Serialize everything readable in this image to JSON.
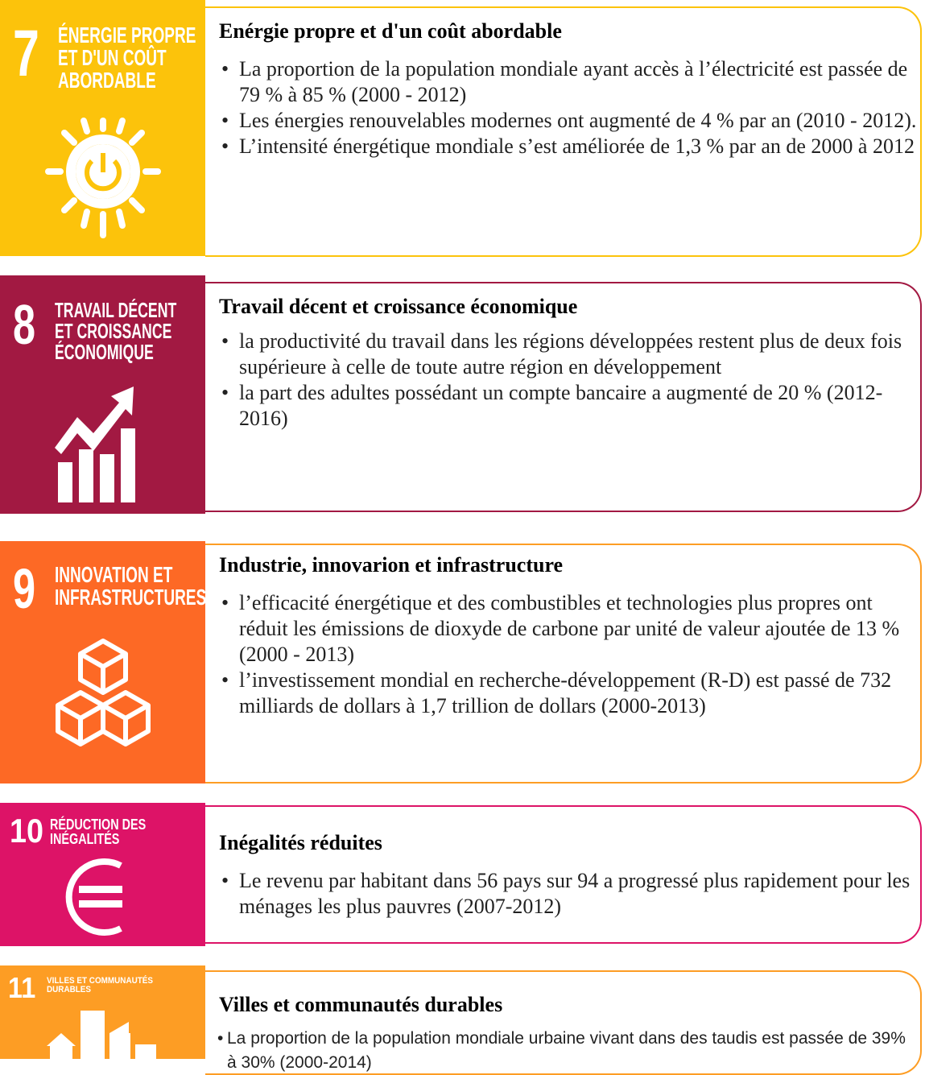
{
  "sections": [
    {
      "number": "7",
      "tile_title": [
        "ÉNERGIE PROPRE",
        "ET D'UN COÛT",
        "ABORDABLE"
      ],
      "title": "Enérgie propre et d'un coût abordable",
      "bullets": [
        "La proportion de la population mondiale ayant accès à l’électricité est passée de 79 % à 85 %  (2000 - 2012)",
        "Les énergies renouvelables modernes ont augmenté de 4 % par an (2010 - 2012).",
        "L’intensité énergétique mondiale s’est améliorée de 1,3 % par an de 2000  à 2012"
      ]
    },
    {
      "number": "8",
      "tile_title": [
        "TRAVAIL DÉCENT",
        "ET CROISSANCE",
        "ÉCONOMIQUE"
      ],
      "title": "Travail décent et croissance économique",
      "bullets": [
        "la productivité du travail dans les régions développées  restent plus de deux fois supérieure à celle de toute autre région en développement",
        "la part des adultes possédant un compte bancaire a augmenté  de 20 %  (2012-2016)"
      ]
    },
    {
      "number": "9",
      "tile_title": [
        "INNOVATION ET",
        "INFRASTRUCTURES"
      ],
      "title": "Industrie, innovarion et infrastructure",
      "bullets": [
        " l’efficacité énergétique et des combustibles et technologies plus propres ont réduit les émissions de dioxyde de carbone par unité de valeur ajoutée de 13 %  (2000 - 2013)",
        "l’investissement mondial en recherche-développement (R-D) est passé de 732 milliards de dollars à 1,7 trillion de dollars (2000-2013)"
      ]
    },
    {
      "number": "10",
      "tile_title": [
        "RÉDUCTION DES",
        "INÉGALITÉS"
      ],
      "title": "Inégalités réduites",
      "bullets": [
        "Le revenu par habitant dans 56 pays sur 94 a progressé plus rapidement pour les ménages les plus pauvres (2007-2012)"
      ]
    },
    {
      "number": "11",
      "tile_title": [
        "VILLES ET COMMUNAUTÉS",
        "DURABLES"
      ],
      "title": "Villes et communautés durables",
      "bullets": [
        "La proportion de la population mondiale urbaine vivant dans des taudis est passée de 39% à 30% (2000-2014)"
      ]
    }
  ]
}
